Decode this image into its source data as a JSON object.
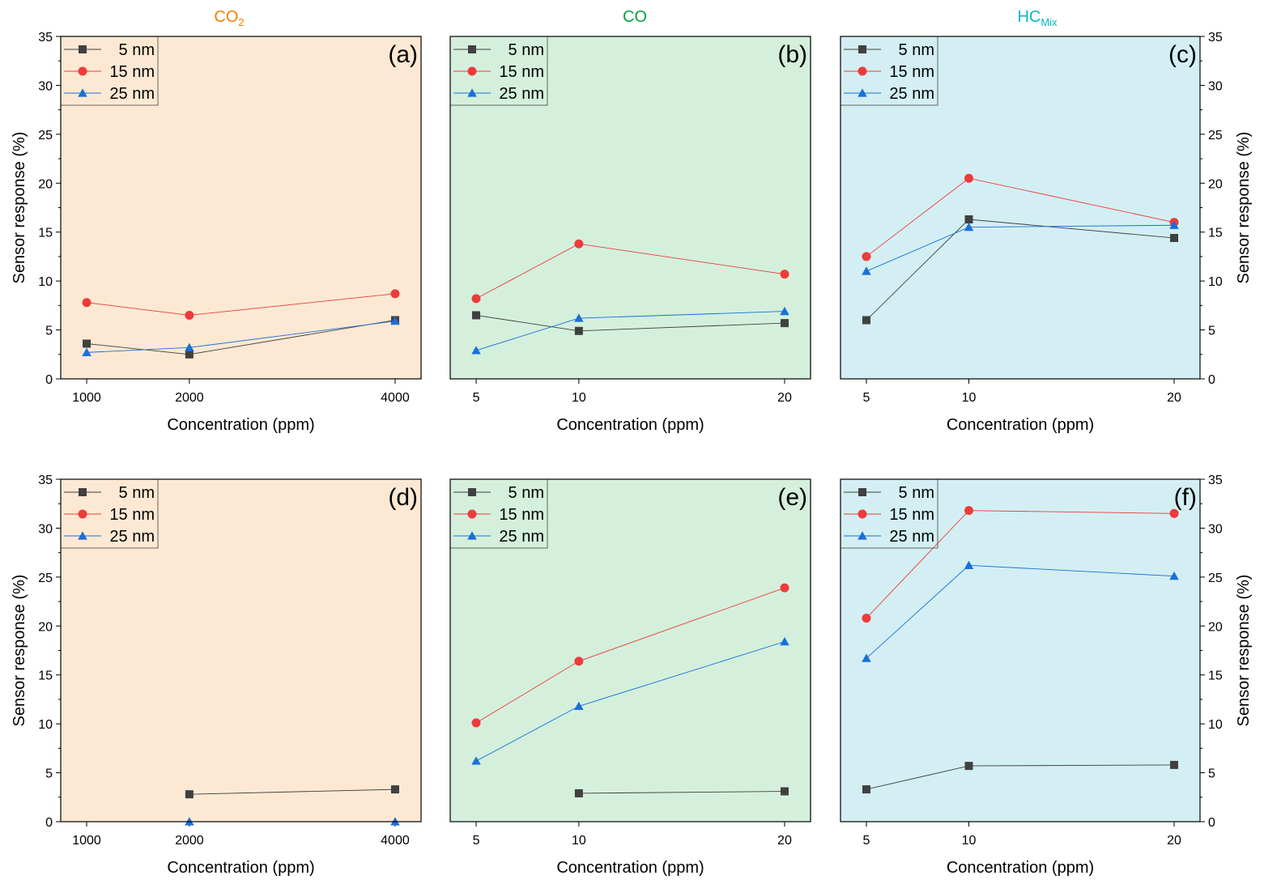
{
  "figure": {
    "column_titles": [
      {
        "main": "CO",
        "sub": "2",
        "color": "#f07f00"
      },
      {
        "main": "CO",
        "sub": "",
        "color": "#00a33a"
      },
      {
        "main": "HC",
        "sub": "Mix",
        "color": "#00b8c6"
      }
    ],
    "panel_backgrounds": [
      "#fde9d3",
      "#d4f0dc",
      "#d3eff3"
    ],
    "series_colors": {
      "5 nm": "#404040",
      "15 nm": "#ee3b3b",
      "25 nm": "#1a6fd8"
    }
  },
  "chart_data": [
    {
      "type": "line",
      "panel_label": "(a)",
      "xlabel": "Concentration (ppm)",
      "ylabel": "Sensor response (%)",
      "x": [
        1000,
        2000,
        4000
      ],
      "xticks": [
        "1000",
        "2000",
        "4000"
      ],
      "ylim": [
        0,
        35
      ],
      "yticks": [
        0,
        5,
        10,
        15,
        20,
        25,
        30,
        35
      ],
      "legend_position": "top-left",
      "series": [
        {
          "name": "5 nm",
          "values": [
            3.6,
            2.5,
            6.0
          ]
        },
        {
          "name": "15 nm",
          "values": [
            7.8,
            6.5,
            8.7
          ]
        },
        {
          "name": "25 nm",
          "values": [
            2.7,
            3.2,
            5.9
          ]
        }
      ]
    },
    {
      "type": "line",
      "panel_label": "(b)",
      "xlabel": "Concentration (ppm)",
      "ylabel": "",
      "x": [
        5,
        10,
        20
      ],
      "xticks": [
        "5",
        "10",
        "20"
      ],
      "ylim": [
        0,
        35
      ],
      "yticks": [],
      "legend_position": "top-left",
      "series": [
        {
          "name": "5 nm",
          "values": [
            6.5,
            4.9,
            5.7
          ]
        },
        {
          "name": "15 nm",
          "values": [
            8.2,
            13.8,
            10.7
          ]
        },
        {
          "name": "25 nm",
          "values": [
            2.9,
            6.2,
            6.9
          ]
        }
      ]
    },
    {
      "type": "line",
      "panel_label": "(c)",
      "xlabel": "Concentration (ppm)",
      "ylabel": "Sensor response (%)",
      "x": [
        5,
        10,
        20
      ],
      "xticks": [
        "5",
        "10",
        "20"
      ],
      "ylim": [
        0,
        35
      ],
      "yticks": [
        0,
        5,
        10,
        15,
        20,
        25,
        30,
        35
      ],
      "legend_position": "top-left",
      "series": [
        {
          "name": "5 nm",
          "values": [
            6.0,
            16.3,
            14.4
          ]
        },
        {
          "name": "15 nm",
          "values": [
            12.5,
            20.5,
            16.0
          ]
        },
        {
          "name": "25 nm",
          "values": [
            11.0,
            15.5,
            15.7
          ]
        }
      ]
    },
    {
      "type": "line",
      "panel_label": "(d)",
      "xlabel": "Concentration (ppm)",
      "ylabel": "Sensor response (%)",
      "x": [
        1000,
        2000,
        4000
      ],
      "xticks": [
        "1000",
        "2000",
        "4000"
      ],
      "ylim": [
        0,
        35
      ],
      "yticks": [
        0,
        5,
        10,
        15,
        20,
        25,
        30,
        35
      ],
      "legend_position": "top-left",
      "series": [
        {
          "name": "5 nm",
          "values": [
            null,
            2.8,
            3.3
          ]
        },
        {
          "name": "15 nm",
          "values": [
            null,
            null,
            null
          ]
        },
        {
          "name": "25 nm",
          "values": [
            null,
            0.0,
            0.0
          ]
        }
      ]
    },
    {
      "type": "line",
      "panel_label": "(e)",
      "xlabel": "Concentration (ppm)",
      "ylabel": "",
      "x": [
        5,
        10,
        20
      ],
      "xticks": [
        "5",
        "10",
        "20"
      ],
      "ylim": [
        0,
        35
      ],
      "yticks": [],
      "legend_position": "top-left",
      "series": [
        {
          "name": "5 nm",
          "values": [
            null,
            2.9,
            3.1
          ]
        },
        {
          "name": "15 nm",
          "values": [
            10.1,
            16.4,
            23.9
          ]
        },
        {
          "name": "25 nm",
          "values": [
            6.2,
            11.8,
            18.4
          ]
        }
      ]
    },
    {
      "type": "line",
      "panel_label": "(f)",
      "xlabel": "Concentration (ppm)",
      "ylabel": "Sensor response (%)",
      "x": [
        5,
        10,
        20
      ],
      "xticks": [
        "5",
        "10",
        "20"
      ],
      "ylim": [
        0,
        35
      ],
      "yticks": [
        0,
        5,
        10,
        15,
        20,
        25,
        30,
        35
      ],
      "legend_position": "top-left",
      "series": [
        {
          "name": "5 nm",
          "values": [
            3.3,
            5.7,
            5.8
          ]
        },
        {
          "name": "15 nm",
          "values": [
            20.8,
            31.8,
            31.5
          ]
        },
        {
          "name": "25 nm",
          "values": [
            16.7,
            26.2,
            25.1
          ]
        }
      ]
    }
  ]
}
